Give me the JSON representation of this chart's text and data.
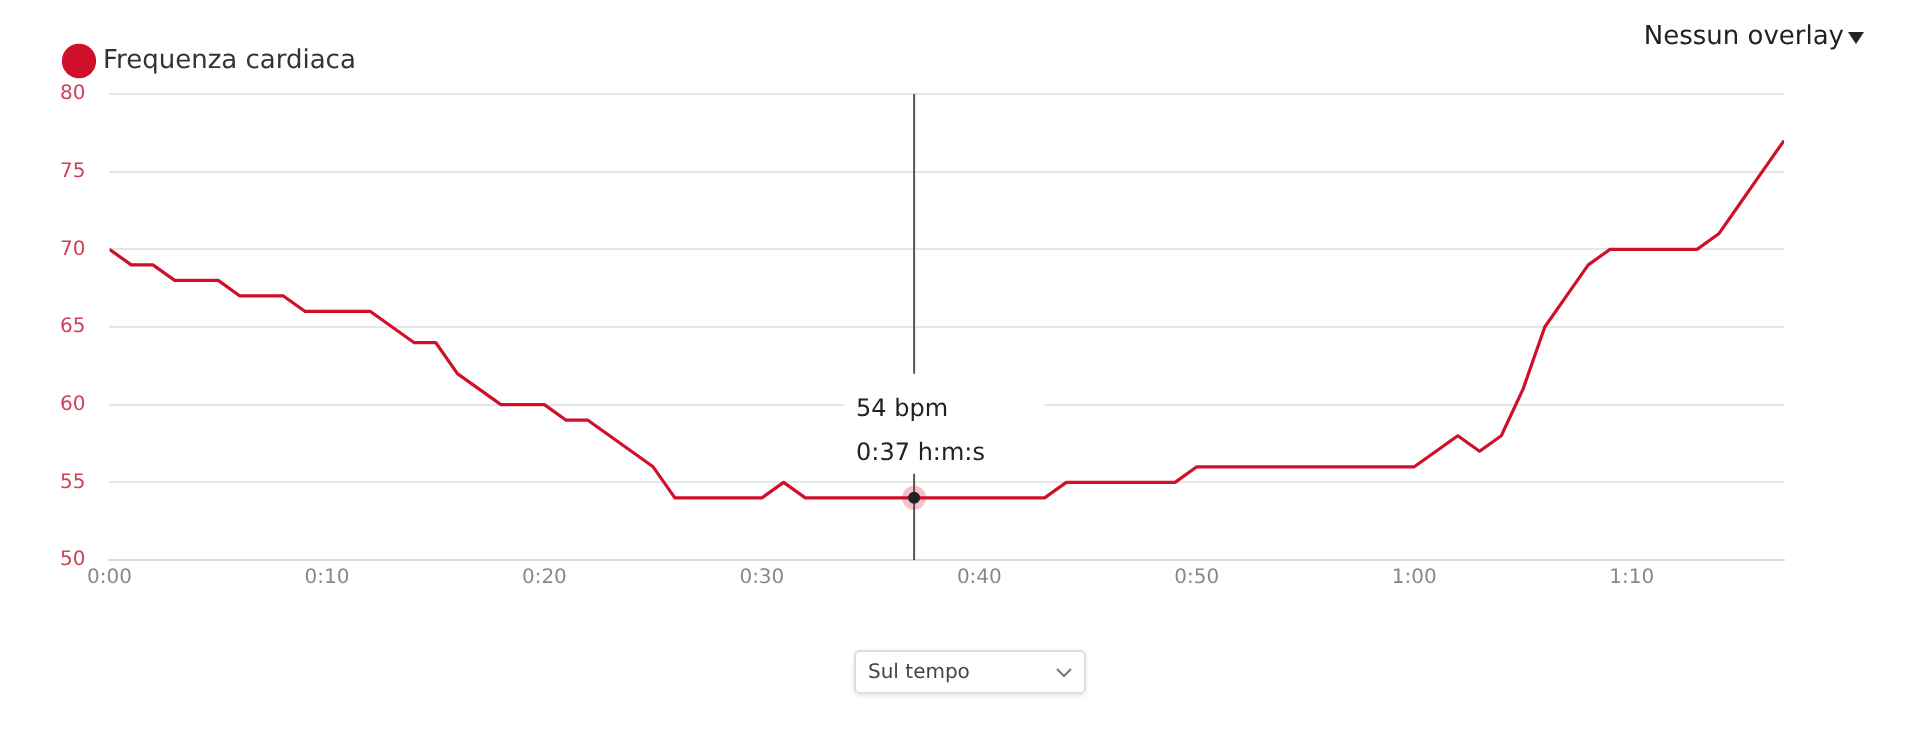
{
  "chart_data": {
    "type": "line",
    "legend": "top left",
    "grid": "y",
    "marker": "none",
    "line_style": "solid",
    "x": [
      0,
      1,
      2,
      3,
      4,
      5,
      6,
      7,
      8,
      9,
      10,
      11,
      12,
      13,
      14,
      15,
      16,
      17,
      18,
      19,
      20,
      21,
      22,
      23,
      24,
      25,
      26,
      27,
      28,
      29,
      30,
      31,
      32,
      33,
      34,
      35,
      36,
      37,
      38,
      39,
      40,
      41,
      42,
      43,
      44,
      45,
      46,
      47,
      48,
      49,
      50,
      51,
      52,
      53,
      54,
      55,
      56,
      57,
      58,
      59,
      60,
      61,
      62,
      63,
      64,
      65,
      66,
      67,
      68,
      69,
      70,
      71,
      72,
      73,
      74,
      75,
      76,
      77
    ],
    "series": [
      {
        "name": "Frequenza cardiaca",
        "color": "#d0102a",
        "values": [
          70,
          69,
          69,
          68,
          68,
          68,
          67,
          67,
          67,
          66,
          66,
          66,
          66,
          65,
          64,
          64,
          62,
          61,
          60,
          60,
          60,
          59,
          59,
          58,
          57,
          56,
          54,
          54,
          54,
          54,
          54,
          55,
          54,
          54,
          54,
          54,
          54,
          54,
          54,
          54,
          54,
          54,
          54,
          54,
          55,
          55,
          55,
          55,
          55,
          55,
          56,
          56,
          56,
          56,
          56,
          56,
          56,
          56,
          56,
          56,
          56,
          57,
          58,
          57,
          58,
          61,
          65,
          67,
          69,
          70,
          70,
          70,
          70,
          70,
          71,
          73,
          75,
          77
        ]
      }
    ],
    "xlim": [
      0,
      77
    ],
    "xticks": [
      {
        "value": 0,
        "label": "0:00"
      },
      {
        "value": 10,
        "label": "0:10"
      },
      {
        "value": 20,
        "label": "0:20"
      },
      {
        "value": 30,
        "label": "0:30"
      },
      {
        "value": 40,
        "label": "0:40"
      },
      {
        "value": 50,
        "label": "0:50"
      },
      {
        "value": 60,
        "label": "1:00"
      },
      {
        "value": 70,
        "label": "1:10"
      }
    ],
    "ylim": [
      50,
      80
    ],
    "yticks": [
      50,
      55,
      60,
      65,
      70,
      75,
      80
    ],
    "ref_lines": [
      {
        "axis": "x",
        "value": 37,
        "color": "#555555"
      }
    ],
    "annotations": [
      "54 bpm",
      "0:37 h:m:s",
      "Nessun overlay",
      "Sul tempo"
    ]
  }
}
